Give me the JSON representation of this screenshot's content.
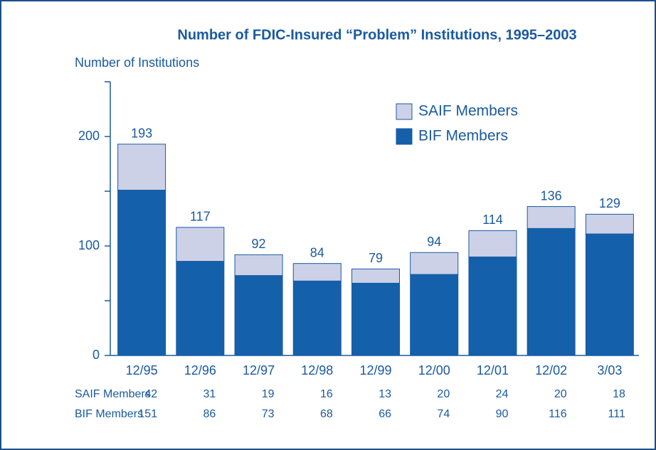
{
  "chart_data": {
    "type": "stacked_bar",
    "title": "Number of FDIC-Insured “Problem” Institutions, 1995–2003",
    "y_label": "Number of Institutions",
    "categories": [
      "12/95",
      "12/96",
      "12/97",
      "12/98",
      "12/99",
      "12/00",
      "12/01",
      "12/02",
      "3/03"
    ],
    "series": [
      {
        "name": "SAIF Members",
        "color": "#cdd1e8",
        "values": [
          42,
          31,
          19,
          16,
          13,
          20,
          24,
          20,
          18
        ]
      },
      {
        "name": "BIF Members",
        "color": "#1460aa",
        "values": [
          151,
          86,
          73,
          68,
          66,
          74,
          90,
          116,
          111
        ]
      }
    ],
    "totals": [
      193,
      117,
      92,
      84,
      79,
      94,
      114,
      136,
      129
    ],
    "ylim": [
      0,
      250
    ],
    "yticks": [
      0,
      100,
      200
    ],
    "minor_yticks": [
      50,
      150,
      250
    ],
    "legend": "upper right"
  }
}
